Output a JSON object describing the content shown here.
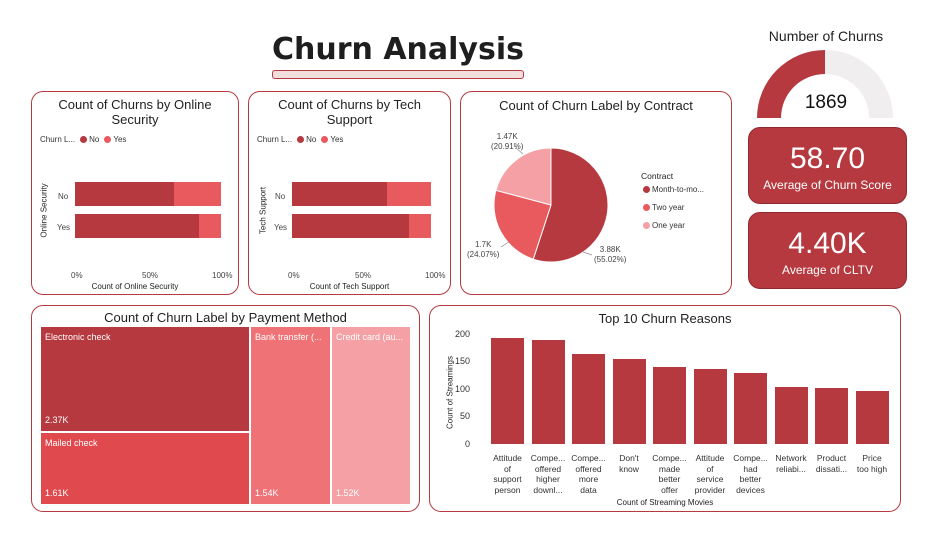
{
  "page": {
    "title": "Churn Analysis"
  },
  "colors": {
    "dark": "#b5393f",
    "medium": "#e85a5e",
    "light": "#f4a0a4",
    "no": "#b5393f",
    "yes": "#e85a5e"
  },
  "online_security": {
    "title_line1": "Count of Churns by Online",
    "title_line2": "Security",
    "legend_title": "Churn L...",
    "legend_no": "No",
    "legend_yes": "Yes",
    "ylabel": "Online Security",
    "xlabel": "Count of Online Security",
    "ticks": [
      "0%",
      "50%",
      "100%"
    ]
  },
  "tech_support": {
    "title_line1": "Count of Churns by Tech",
    "title_line2": "Support",
    "legend_title": "Churn L...",
    "legend_no": "No",
    "legend_yes": "Yes",
    "ylabel": "Tech Support",
    "xlabel": "Count of Tech Support",
    "ticks": [
      "0%",
      "50%",
      "100%"
    ]
  },
  "contract": {
    "title": "Count of Churn Label by Contract",
    "legend_title": "Contract",
    "labels": [
      {
        "value": "3.88K",
        "pct": "(55.02%)"
      },
      {
        "value": "1.7K",
        "pct": "(24.07%)"
      },
      {
        "value": "1.47K",
        "pct": "(20.91%)"
      }
    ],
    "legend": [
      "Month-to-mo...",
      "Two year",
      "One year"
    ]
  },
  "gauge": {
    "title": "Number of Churns",
    "value": "1869",
    "fill_fraction": 0.5
  },
  "kpi_churn_score": {
    "value": "58.70",
    "label": "Average of Churn Score"
  },
  "kpi_cltv": {
    "value": "4.40K",
    "label": "Average of CLTV"
  },
  "payment": {
    "title": "Count of Churn Label by Payment Method",
    "cells": [
      {
        "name": "Electronic check",
        "value": "2.37K"
      },
      {
        "name": "Mailed check",
        "value": "1.61K"
      },
      {
        "name": "Bank transfer (...",
        "value": "1.54K"
      },
      {
        "name": "Credit card (au...",
        "value": "1.52K"
      }
    ]
  },
  "reasons": {
    "title": "Top 10 Churn Reasons",
    "ylabel": "Count of Streamings",
    "xlabel": "Count of Streaming Movies",
    "yticks": [
      "200",
      "150",
      "100",
      "50",
      "0"
    ],
    "category_lines": [
      [
        "Attitude",
        "of",
        "support",
        "person"
      ],
      [
        "Compe...",
        "offered",
        "higher",
        "downl..."
      ],
      [
        "Compe...",
        "offered",
        "more",
        "data"
      ],
      [
        "Don't",
        "know"
      ],
      [
        "Compe...",
        "made",
        "better",
        "offer"
      ],
      [
        "Attitude",
        "of",
        "service",
        "provider"
      ],
      [
        "Compe...",
        "had",
        "better",
        "devices"
      ],
      [
        "Network",
        "reliabi..."
      ],
      [
        "Product",
        "dissati..."
      ],
      [
        "Price",
        "too high"
      ]
    ]
  },
  "chart_data": [
    {
      "type": "bar",
      "orientation": "horizontal-stacked-100",
      "title": "Count of Churns by Online Security",
      "xlabel": "Count of Online Security",
      "ylabel": "Online Security",
      "categories": [
        "No",
        "Yes"
      ],
      "series": [
        {
          "name": "No",
          "values": [
            68,
            85
          ]
        },
        {
          "name": "Yes",
          "values": [
            32,
            15
          ]
        }
      ],
      "xlim": [
        0,
        100
      ],
      "legend": "top-left"
    },
    {
      "type": "bar",
      "orientation": "horizontal-stacked-100",
      "title": "Count of Churns by Tech Support",
      "xlabel": "Count of Tech Support",
      "ylabel": "Tech Support",
      "categories": [
        "No",
        "Yes"
      ],
      "series": [
        {
          "name": "No",
          "values": [
            68,
            84
          ]
        },
        {
          "name": "Yes",
          "values": [
            32,
            16
          ]
        }
      ],
      "xlim": [
        0,
        100
      ],
      "legend": "top-left"
    },
    {
      "type": "pie",
      "title": "Count of Churn Label by Contract",
      "categories": [
        "Month-to-mo...",
        "Two year",
        "One year"
      ],
      "values": [
        3880,
        1700,
        1470
      ],
      "percentages": [
        55.02,
        24.07,
        20.91
      ],
      "legend": "right"
    },
    {
      "type": "treemap",
      "title": "Count of Churn Label by Payment Method",
      "categories": [
        "Electronic check",
        "Mailed check",
        "Bank transfer (...",
        "Credit card (au..."
      ],
      "values": [
        2370,
        1610,
        1540,
        1520
      ]
    },
    {
      "type": "bar",
      "title": "Top 10 Churn Reasons",
      "xlabel": "Count of Streaming Movies",
      "ylabel": "Count of Streamings",
      "categories": [
        "Attitude of support person",
        "Compe... offered higher downl...",
        "Compe... offered more data",
        "Don't know",
        "Compe... made better offer",
        "Attitude of service provider",
        "Compe... had better devices",
        "Network reliabi...",
        "Product dissati...",
        "Price too high"
      ],
      "values": [
        192,
        189,
        163,
        154,
        140,
        136,
        130,
        103,
        102,
        97
      ],
      "ylim": [
        0,
        200
      ],
      "grid": false
    }
  ]
}
